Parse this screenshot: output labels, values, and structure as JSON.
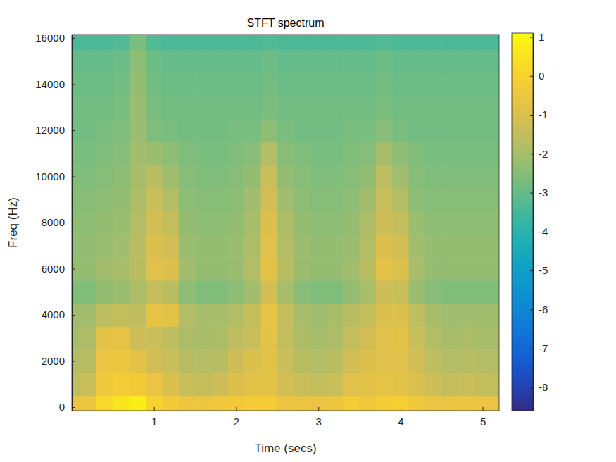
{
  "chart_data": {
    "type": "heatmap",
    "title": "STFT spectrum",
    "x_label": "Time (secs)",
    "y_label": "Freq (Hz)",
    "x": [
      0,
      0.2,
      0.4,
      0.6,
      0.8,
      1.0,
      1.2,
      1.4,
      1.6,
      1.8,
      2.0,
      2.2,
      2.4,
      2.6,
      2.8,
      3.0,
      3.2,
      3.4,
      3.6,
      3.8,
      4.0,
      4.2,
      4.4,
      4.6,
      4.8,
      5.0,
      5.2
    ],
    "y": [
      0,
      1000,
      2000,
      3000,
      4000,
      5000,
      6000,
      7000,
      8000,
      9000,
      10000,
      11000,
      12000,
      13000,
      14000,
      15000,
      16000
    ],
    "values": [
      [
        -0.6,
        -0.5,
        0.2,
        0.6,
        0.8,
        0.0,
        -0.3,
        -0.5,
        -0.5,
        -0.4,
        -0.3,
        -0.2,
        -0.2,
        -0.5,
        -0.6,
        -0.6,
        -0.5,
        -0.2,
        -0.4,
        -0.2,
        -0.1,
        -0.4,
        -0.6,
        -0.6,
        -0.5,
        -0.6,
        -0.6
      ],
      [
        -1.6,
        -1.4,
        -0.4,
        -0.2,
        -0.3,
        -0.6,
        -1.0,
        -1.4,
        -1.5,
        -1.3,
        -1.0,
        -0.8,
        -0.8,
        -1.2,
        -1.4,
        -1.5,
        -1.4,
        -0.9,
        -0.8,
        -0.7,
        -0.8,
        -1.0,
        -1.3,
        -1.5,
        -1.4,
        -1.5,
        -1.6
      ],
      [
        -1.8,
        -1.7,
        -0.6,
        -0.5,
        -0.8,
        -1.2,
        -1.4,
        -1.7,
        -1.8,
        -1.7,
        -1.3,
        -1.0,
        -0.8,
        -1.4,
        -1.7,
        -1.8,
        -1.7,
        -1.2,
        -1.0,
        -0.9,
        -0.9,
        -1.2,
        -1.6,
        -1.8,
        -1.7,
        -1.8,
        -1.8
      ],
      [
        -2.0,
        -1.9,
        -0.8,
        -0.7,
        -1.3,
        -1.4,
        -1.6,
        -1.9,
        -2.0,
        -1.9,
        -1.6,
        -1.4,
        -0.8,
        -1.5,
        -1.9,
        -2.0,
        -1.9,
        -1.5,
        -1.2,
        -0.9,
        -0.8,
        -1.4,
        -1.8,
        -2.0,
        -1.9,
        -2.0,
        -2.0
      ],
      [
        -2.1,
        -2.1,
        -1.6,
        -1.5,
        -1.6,
        -0.7,
        -0.8,
        -1.8,
        -2.0,
        -2.0,
        -1.8,
        -1.5,
        -0.7,
        -1.5,
        -2.0,
        -2.1,
        -2.0,
        -1.7,
        -1.5,
        -1.0,
        -1.0,
        -1.6,
        -2.0,
        -2.1,
        -2.1,
        -2.1,
        -2.1
      ],
      [
        -2.6,
        -2.6,
        -2.3,
        -2.2,
        -1.9,
        -1.5,
        -1.7,
        -2.4,
        -2.6,
        -2.6,
        -2.4,
        -2.1,
        -1.2,
        -2.0,
        -2.5,
        -2.6,
        -2.6,
        -2.3,
        -2.0,
        -1.3,
        -1.4,
        -2.2,
        -2.5,
        -2.6,
        -2.6,
        -2.6,
        -2.6
      ],
      [
        -2.3,
        -2.3,
        -2.1,
        -2.0,
        -1.7,
        -0.9,
        -1.0,
        -2.1,
        -2.3,
        -2.3,
        -2.2,
        -1.8,
        -0.8,
        -1.7,
        -2.2,
        -2.3,
        -2.3,
        -2.1,
        -1.7,
        -0.8,
        -1.0,
        -2.0,
        -2.3,
        -2.3,
        -2.3,
        -2.3,
        -2.3
      ],
      [
        -2.3,
        -2.3,
        -2.2,
        -2.1,
        -1.7,
        -1.0,
        -1.2,
        -2.2,
        -2.3,
        -2.3,
        -2.2,
        -1.9,
        -0.9,
        -1.8,
        -2.2,
        -2.3,
        -2.3,
        -2.2,
        -1.8,
        -1.0,
        -1.2,
        -2.1,
        -2.3,
        -2.3,
        -2.3,
        -2.3,
        -2.3
      ],
      [
        -2.4,
        -2.4,
        -2.3,
        -2.2,
        -1.8,
        -1.2,
        -1.5,
        -2.3,
        -2.4,
        -2.4,
        -2.3,
        -2.0,
        -1.0,
        -1.9,
        -2.3,
        -2.4,
        -2.4,
        -2.3,
        -1.9,
        -1.3,
        -1.5,
        -2.2,
        -2.4,
        -2.4,
        -2.4,
        -2.4,
        -2.4
      ],
      [
        -2.5,
        -2.5,
        -2.4,
        -2.3,
        -1.9,
        -1.4,
        -1.8,
        -2.4,
        -2.5,
        -2.5,
        -2.4,
        -2.1,
        -1.2,
        -2.1,
        -2.4,
        -2.5,
        -2.5,
        -2.4,
        -2.1,
        -1.4,
        -1.8,
        -2.4,
        -2.5,
        -2.5,
        -2.5,
        -2.5,
        -2.5
      ],
      [
        -2.6,
        -2.6,
        -2.5,
        -2.4,
        -2.0,
        -1.7,
        -2.1,
        -2.5,
        -2.6,
        -2.6,
        -2.5,
        -2.3,
        -1.4,
        -2.3,
        -2.5,
        -2.6,
        -2.6,
        -2.5,
        -2.3,
        -1.6,
        -2.1,
        -2.5,
        -2.6,
        -2.6,
        -2.6,
        -2.6,
        -2.6
      ],
      [
        -2.7,
        -2.7,
        -2.6,
        -2.5,
        -2.1,
        -2.2,
        -2.4,
        -2.6,
        -2.7,
        -2.7,
        -2.6,
        -2.5,
        -1.8,
        -2.5,
        -2.6,
        -2.7,
        -2.7,
        -2.6,
        -2.5,
        -2.0,
        -2.4,
        -2.6,
        -2.7,
        -2.7,
        -2.7,
        -2.7,
        -2.7
      ],
      [
        -2.8,
        -2.8,
        -2.7,
        -2.6,
        -2.2,
        -2.6,
        -2.7,
        -2.8,
        -2.8,
        -2.8,
        -2.7,
        -2.7,
        -2.4,
        -2.7,
        -2.8,
        -2.8,
        -2.8,
        -2.7,
        -2.7,
        -2.5,
        -2.7,
        -2.8,
        -2.8,
        -2.8,
        -2.8,
        -2.8,
        -2.8
      ],
      [
        -2.8,
        -2.8,
        -2.8,
        -2.7,
        -2.2,
        -2.7,
        -2.8,
        -2.8,
        -2.8,
        -2.8,
        -2.8,
        -2.8,
        -2.7,
        -2.8,
        -2.8,
        -2.8,
        -2.8,
        -2.8,
        -2.8,
        -2.7,
        -2.8,
        -2.8,
        -2.8,
        -2.8,
        -2.8,
        -2.8,
        -2.8
      ],
      [
        -2.9,
        -2.9,
        -2.9,
        -2.8,
        -2.3,
        -2.8,
        -2.9,
        -2.9,
        -2.9,
        -2.9,
        -2.9,
        -2.9,
        -2.8,
        -2.9,
        -2.9,
        -2.9,
        -2.9,
        -2.9,
        -2.9,
        -2.8,
        -2.9,
        -2.9,
        -2.9,
        -2.9,
        -2.9,
        -2.9,
        -2.9
      ],
      [
        -3.0,
        -3.0,
        -3.0,
        -2.9,
        -2.4,
        -2.9,
        -3.0,
        -3.0,
        -3.0,
        -3.0,
        -3.0,
        -3.0,
        -2.9,
        -3.0,
        -3.0,
        -3.0,
        -3.0,
        -3.0,
        -3.0,
        -2.9,
        -3.0,
        -3.0,
        -3.0,
        -3.0,
        -3.0,
        -3.0,
        -3.0
      ],
      [
        -3.4,
        -3.4,
        -3.4,
        -3.3,
        -2.7,
        -3.3,
        -3.4,
        -3.4,
        -3.4,
        -3.4,
        -3.4,
        -3.4,
        -3.3,
        -3.4,
        -3.4,
        -3.4,
        -3.4,
        -3.4,
        -3.4,
        -3.3,
        -3.4,
        -3.4,
        -3.4,
        -3.4,
        -3.4,
        -3.4,
        -3.4
      ]
    ],
    "xlim": [
      0,
      5.2
    ],
    "xticks": [
      1,
      2,
      3,
      4,
      5
    ],
    "ylim": [
      -150,
      16150
    ],
    "yticks": [
      0,
      2000,
      4000,
      6000,
      8000,
      10000,
      12000,
      14000,
      16000
    ],
    "colorbar": {
      "range": [
        -8.6,
        1.1
      ],
      "ticks": [
        -8,
        -7,
        -6,
        -5,
        -4,
        -3,
        -2,
        -1,
        0,
        1
      ]
    }
  }
}
